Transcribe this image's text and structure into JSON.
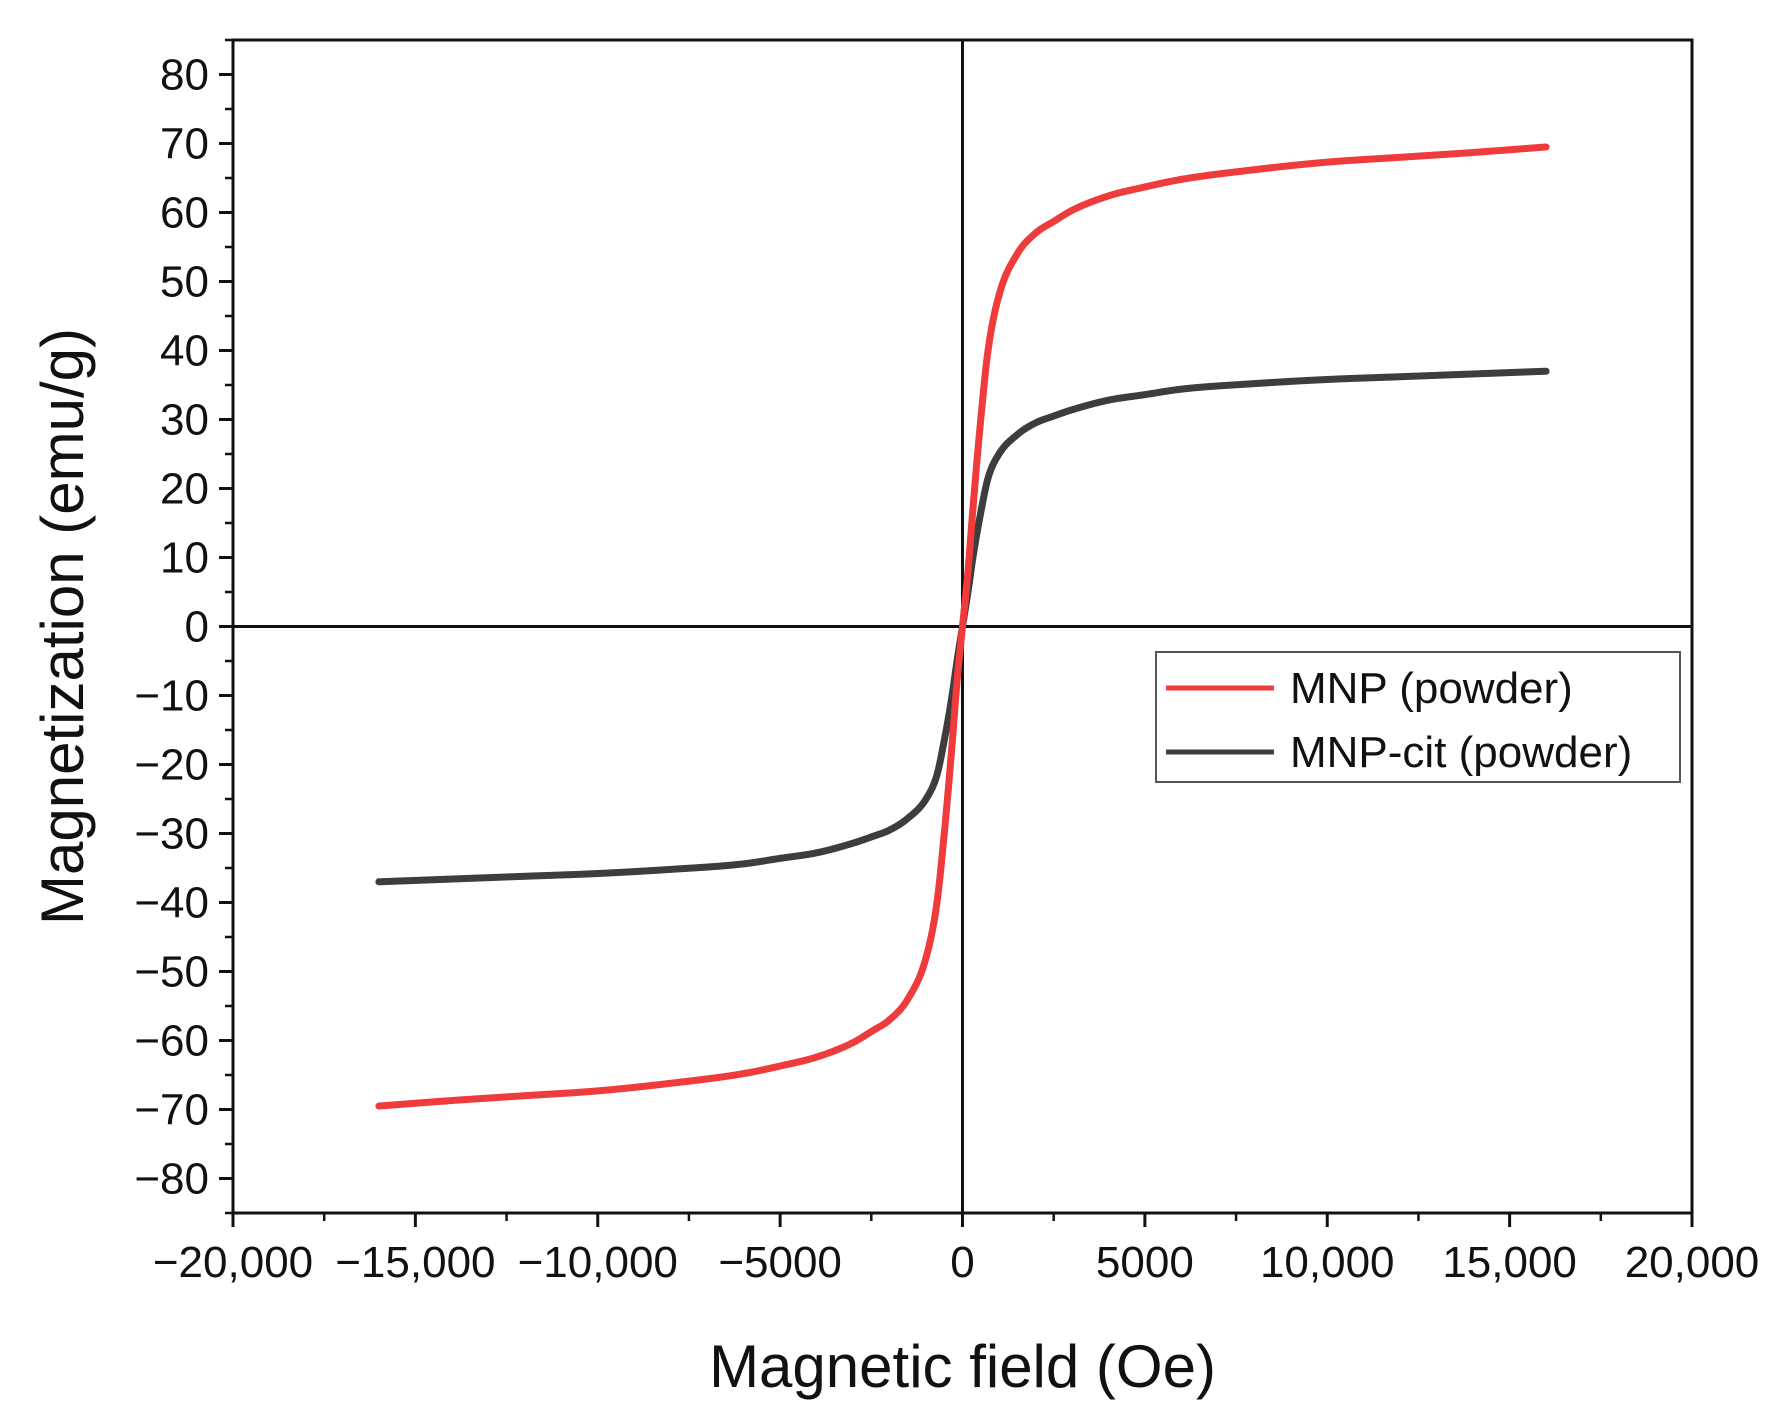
{
  "chart_data": {
    "type": "line",
    "title": "",
    "xlabel": "Magnetic field (Oe)",
    "ylabel": "Magnetization (emu/g)",
    "xlim": [
      -20000,
      20000
    ],
    "ylim": [
      -85,
      85
    ],
    "grid": false,
    "legend_position": "right-middle",
    "x_ticks": [
      {
        "value": -20000,
        "label": "−20,000"
      },
      {
        "value": -15000,
        "label": "−15,000"
      },
      {
        "value": -10000,
        "label": "−10,000"
      },
      {
        "value": -5000,
        "label": "−5000"
      },
      {
        "value": 0,
        "label": "0"
      },
      {
        "value": 5000,
        "label": "5000"
      },
      {
        "value": 10000,
        "label": "10,000"
      },
      {
        "value": 15000,
        "label": "15,000"
      },
      {
        "value": 20000,
        "label": "20,000"
      }
    ],
    "y_ticks": [
      {
        "value": 80,
        "label": "80"
      },
      {
        "value": 70,
        "label": "70"
      },
      {
        "value": 60,
        "label": "60"
      },
      {
        "value": 50,
        "label": "50"
      },
      {
        "value": 40,
        "label": "40"
      },
      {
        "value": 30,
        "label": "30"
      },
      {
        "value": 20,
        "label": "20"
      },
      {
        "value": 10,
        "label": "10"
      },
      {
        "value": 0,
        "label": "0"
      },
      {
        "value": -10,
        "label": "−10"
      },
      {
        "value": -20,
        "label": "−20"
      },
      {
        "value": -30,
        "label": "−30"
      },
      {
        "value": -40,
        "label": "−40"
      },
      {
        "value": -50,
        "label": "−50"
      },
      {
        "value": -60,
        "label": "−60"
      },
      {
        "value": -70,
        "label": "−70"
      },
      {
        "value": -80,
        "label": "−80"
      }
    ],
    "series": [
      {
        "name": "MNP (powder)",
        "color": "#ef3b3b",
        "x": [
          -16000,
          -14000,
          -12000,
          -10000,
          -8000,
          -6000,
          -5000,
          -4000,
          -3000,
          -2500,
          -2000,
          -1500,
          -1000,
          -700,
          -500,
          -300,
          -150,
          0,
          150,
          300,
          500,
          700,
          1000,
          1500,
          2000,
          2500,
          3000,
          4000,
          5000,
          6000,
          8000,
          10000,
          12000,
          14000,
          16000
        ],
        "y": [
          -69.5,
          -68.7,
          -68.0,
          -67.3,
          -66.2,
          -64.8,
          -63.7,
          -62.4,
          -60.3,
          -58.7,
          -57.0,
          -54.0,
          -48.0,
          -40.0,
          -30.0,
          -18.0,
          -8.0,
          0,
          8.0,
          18.0,
          30.0,
          40.0,
          48.0,
          54.0,
          57.0,
          58.7,
          60.3,
          62.4,
          63.7,
          64.8,
          66.2,
          67.3,
          68.0,
          68.7,
          69.5
        ]
      },
      {
        "name": "MNP-cit (powder)",
        "color": "#3d3d3d",
        "x": [
          -16000,
          -14000,
          -12000,
          -10000,
          -8000,
          -6000,
          -5000,
          -4000,
          -3000,
          -2500,
          -2000,
          -1500,
          -1000,
          -700,
          -500,
          -300,
          -150,
          0,
          150,
          300,
          500,
          700,
          1000,
          1500,
          2000,
          2500,
          3000,
          4000,
          5000,
          6000,
          8000,
          10000,
          12000,
          14000,
          16000
        ],
        "y": [
          -37.0,
          -36.6,
          -36.2,
          -35.8,
          -35.2,
          -34.4,
          -33.6,
          -32.8,
          -31.4,
          -30.5,
          -29.5,
          -27.8,
          -25.0,
          -21.5,
          -16.5,
          -10.5,
          -5.0,
          0,
          5.0,
          10.5,
          16.5,
          21.5,
          25.0,
          27.8,
          29.5,
          30.5,
          31.4,
          32.8,
          33.6,
          34.4,
          35.2,
          35.8,
          36.2,
          36.6,
          37.0
        ]
      }
    ]
  }
}
